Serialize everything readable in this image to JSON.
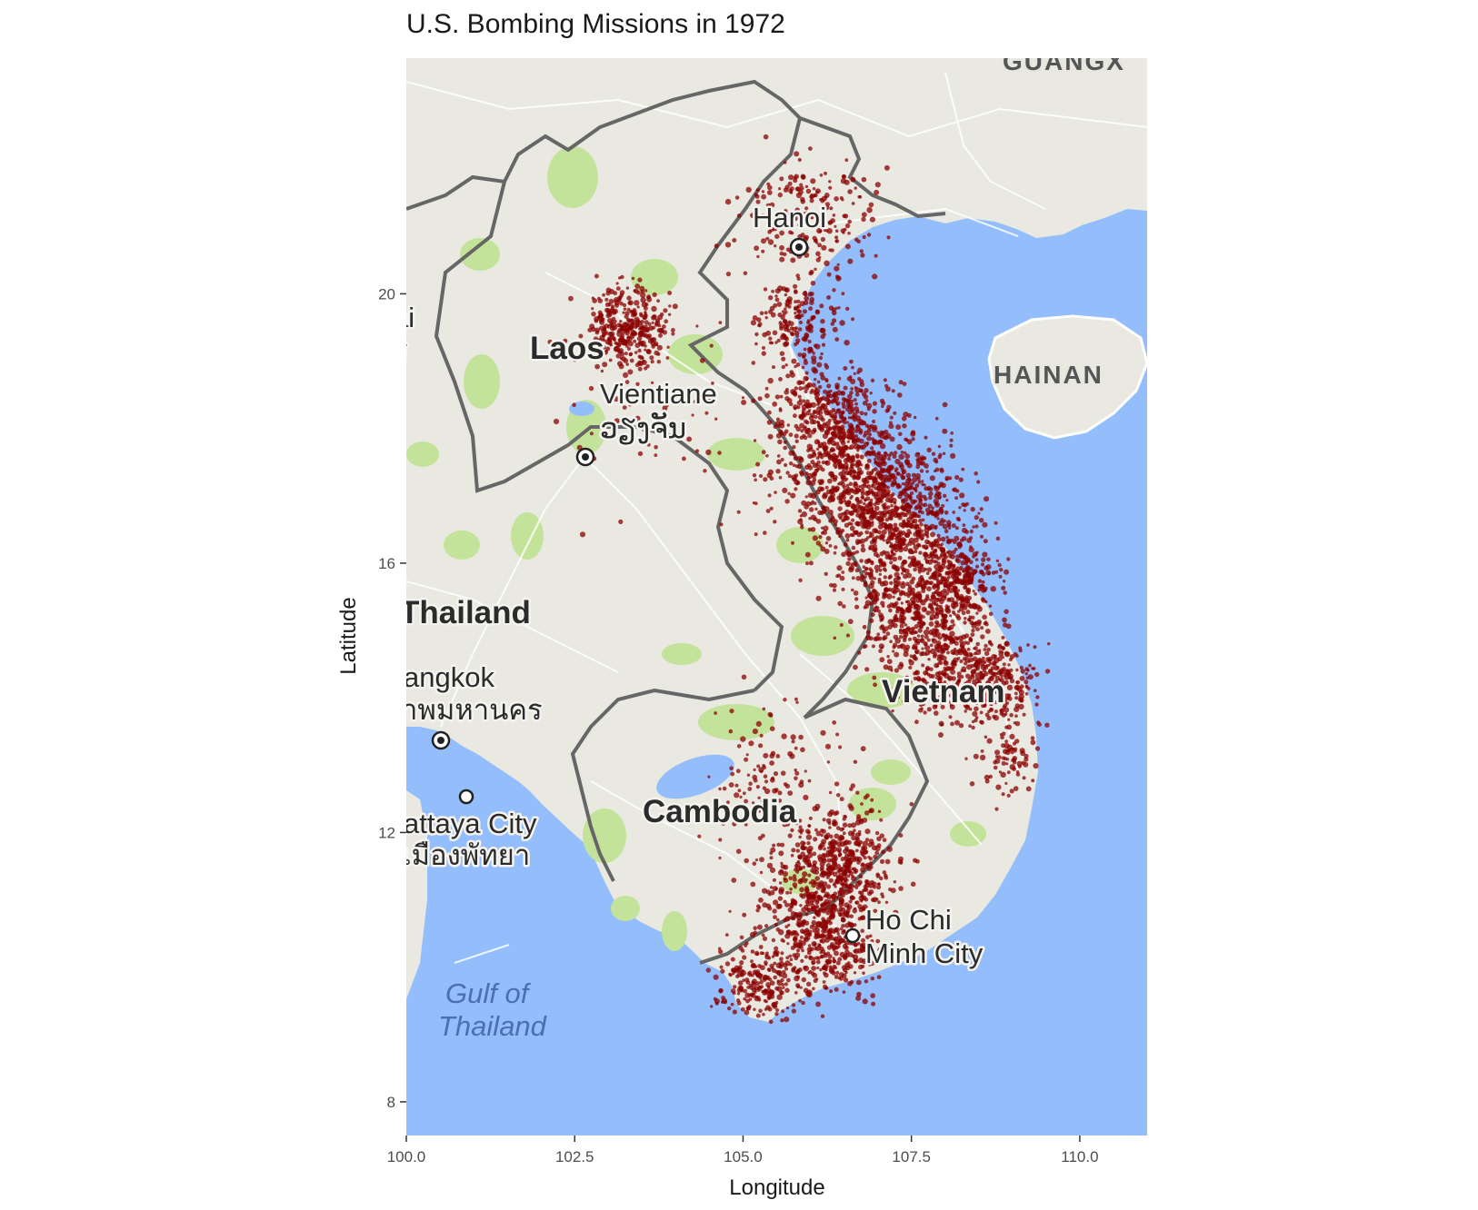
{
  "title": "U.S. Bombing Missions in 1972",
  "chart_data": {
    "type": "scatter",
    "title": "U.S. Bombing Missions in 1972",
    "xlabel": "Longitude",
    "ylabel": "Latitude",
    "xlim": [
      100.0,
      111.0
    ],
    "ylim": [
      7.5,
      23.5
    ],
    "x_ticks": [
      "100.0",
      "102.5",
      "105.0",
      "107.5",
      "110.0"
    ],
    "y_ticks": [
      "8",
      "12",
      "16",
      "20"
    ],
    "grid": false,
    "point_color": "#8b0000",
    "basemap_labels": {
      "countries": [
        "Laos",
        "Thailand",
        "Vietnam",
        "Cambodia"
      ],
      "cities": [
        "Hanoi",
        "Vientiane",
        "ວຽງຈັນ",
        "angkok",
        "าพมหานคร",
        "attaya City",
        "เมืองพัทยา",
        "Ho Chi",
        "Minh City"
      ],
      "regions": [
        "HAINAN",
        "GUANGX",
        "ai",
        "ร"
      ],
      "water": [
        "Gulf of",
        "Thailand"
      ]
    },
    "clusters": [
      {
        "lon": 103.3,
        "lat": 19.5,
        "spread": 0.3,
        "n": 320
      },
      {
        "lon": 106.0,
        "lat": 21.1,
        "spread": 0.45,
        "n": 200
      },
      {
        "lon": 105.8,
        "lat": 19.6,
        "spread": 0.35,
        "n": 180
      },
      {
        "lon": 106.2,
        "lat": 18.3,
        "spread": 0.4,
        "n": 260
      },
      {
        "lon": 106.5,
        "lat": 17.4,
        "spread": 0.55,
        "n": 600
      },
      {
        "lon": 107.3,
        "lat": 16.7,
        "spread": 0.5,
        "n": 650
      },
      {
        "lon": 108.2,
        "lat": 15.8,
        "spread": 0.3,
        "n": 260
      },
      {
        "lon": 107.4,
        "lat": 15.4,
        "spread": 0.45,
        "n": 380
      },
      {
        "lon": 108.1,
        "lat": 14.6,
        "spread": 0.45,
        "n": 380
      },
      {
        "lon": 108.8,
        "lat": 14.2,
        "spread": 0.3,
        "n": 200
      },
      {
        "lon": 108.9,
        "lat": 13.1,
        "spread": 0.25,
        "n": 80
      },
      {
        "lon": 106.5,
        "lat": 11.6,
        "spread": 0.4,
        "n": 380
      },
      {
        "lon": 106.0,
        "lat": 11.0,
        "spread": 0.45,
        "n": 280
      },
      {
        "lon": 106.3,
        "lat": 10.3,
        "spread": 0.35,
        "n": 280
      },
      {
        "lon": 105.3,
        "lat": 9.8,
        "spread": 0.3,
        "n": 220
      },
      {
        "lon": 105.4,
        "lat": 12.8,
        "spread": 0.5,
        "n": 120
      },
      {
        "lon": 103.6,
        "lat": 18.3,
        "spread": 0.8,
        "n": 60
      }
    ]
  }
}
